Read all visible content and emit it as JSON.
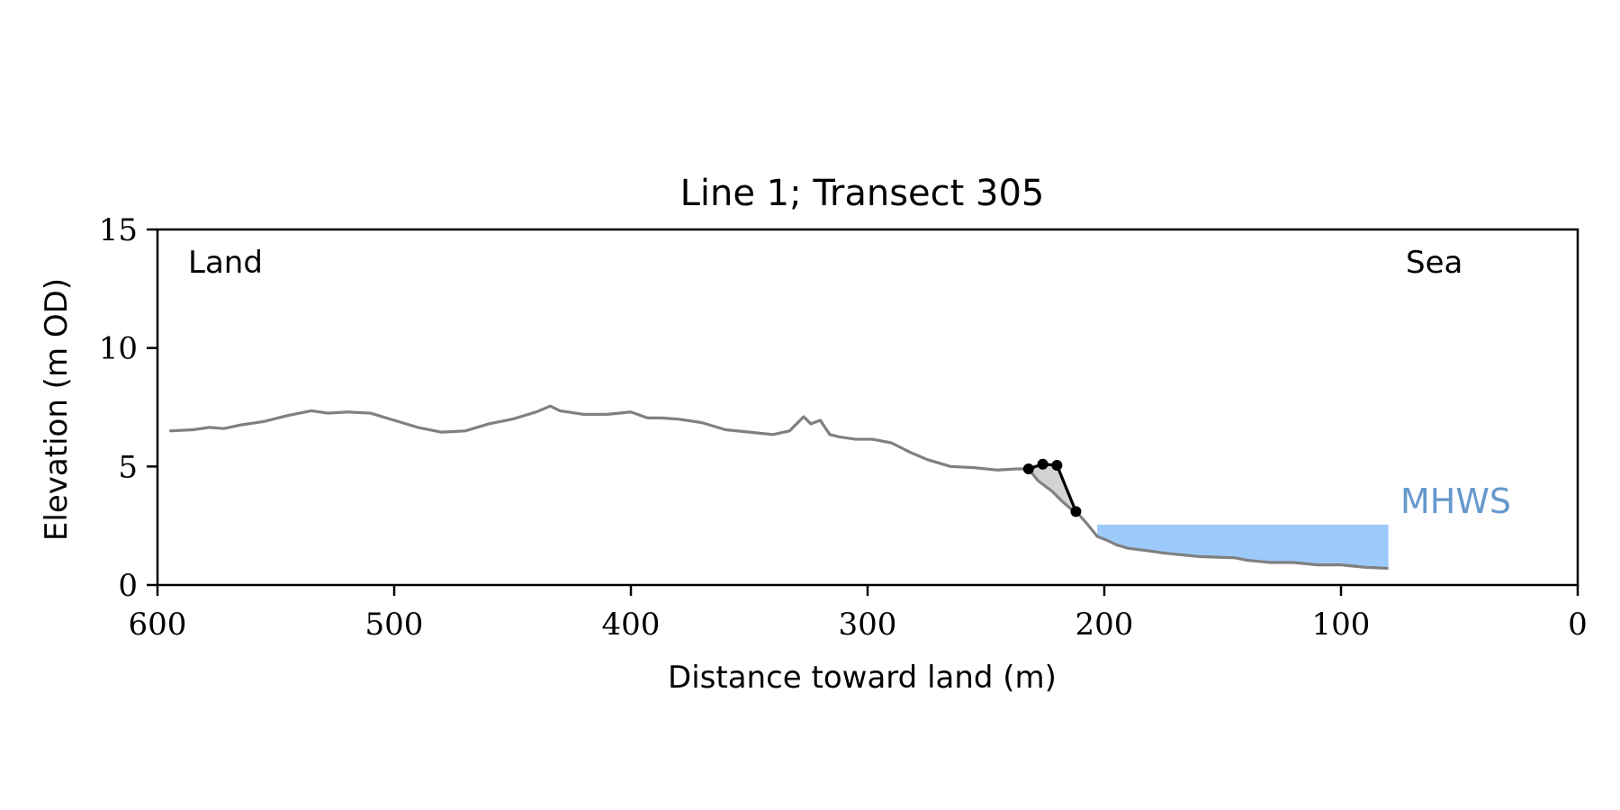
{
  "chart_data": {
    "type": "line",
    "title": "Line 1; Transect 305",
    "xlabel": "Distance toward land (m)",
    "ylabel": "Elevation (m OD)",
    "xlim": [
      600,
      0
    ],
    "ylim": [
      0,
      15
    ],
    "x_ticks": [
      600,
      500,
      400,
      300,
      200,
      100,
      0
    ],
    "y_ticks": [
      0,
      5,
      10,
      15
    ],
    "grid": false,
    "annotations": {
      "left": "Land",
      "right": "Sea",
      "water_label": "MHWS"
    },
    "colors": {
      "profile": "#808080",
      "cliff": "#000000",
      "wedge": "#d3d3d3",
      "water": "#9ccbfb",
      "mhws_text": "#6699cc"
    },
    "profile": {
      "x": [
        595,
        585,
        578,
        572,
        565,
        555,
        545,
        535,
        528,
        520,
        510,
        500,
        490,
        480,
        470,
        460,
        450,
        440,
        434,
        430,
        420,
        410,
        400,
        393,
        387,
        380,
        370,
        360,
        350,
        340,
        333,
        327,
        324,
        320,
        316,
        312,
        305,
        298,
        290,
        282,
        275,
        265,
        255,
        245,
        237,
        232,
        228,
        222,
        218,
        214,
        211,
        207,
        203,
        198,
        195,
        190,
        182,
        175,
        160,
        145,
        140,
        130,
        120,
        110,
        100,
        90,
        80
      ],
      "y": [
        6.5,
        6.55,
        6.65,
        6.6,
        6.75,
        6.9,
        7.15,
        7.35,
        7.25,
        7.3,
        7.25,
        6.95,
        6.65,
        6.45,
        6.5,
        6.8,
        7.0,
        7.3,
        7.55,
        7.35,
        7.2,
        7.2,
        7.3,
        7.05,
        7.05,
        7.0,
        6.85,
        6.55,
        6.45,
        6.35,
        6.5,
        7.1,
        6.8,
        6.95,
        6.35,
        6.25,
        6.15,
        6.15,
        6.0,
        5.6,
        5.3,
        5.0,
        4.95,
        4.85,
        4.9,
        4.9,
        4.4,
        3.95,
        3.55,
        3.2,
        3.0,
        2.55,
        2.05,
        1.85,
        1.7,
        1.55,
        1.45,
        1.35,
        1.2,
        1.15,
        1.05,
        0.95,
        0.95,
        0.85,
        0.85,
        0.75,
        0.7
      ]
    },
    "cliff_points": {
      "x": [
        232,
        226,
        220,
        212
      ],
      "y": [
        4.9,
        5.1,
        5.05,
        3.1
      ]
    },
    "mhws": {
      "elevation": 2.55,
      "x_start": 203,
      "x_end": 80
    }
  }
}
